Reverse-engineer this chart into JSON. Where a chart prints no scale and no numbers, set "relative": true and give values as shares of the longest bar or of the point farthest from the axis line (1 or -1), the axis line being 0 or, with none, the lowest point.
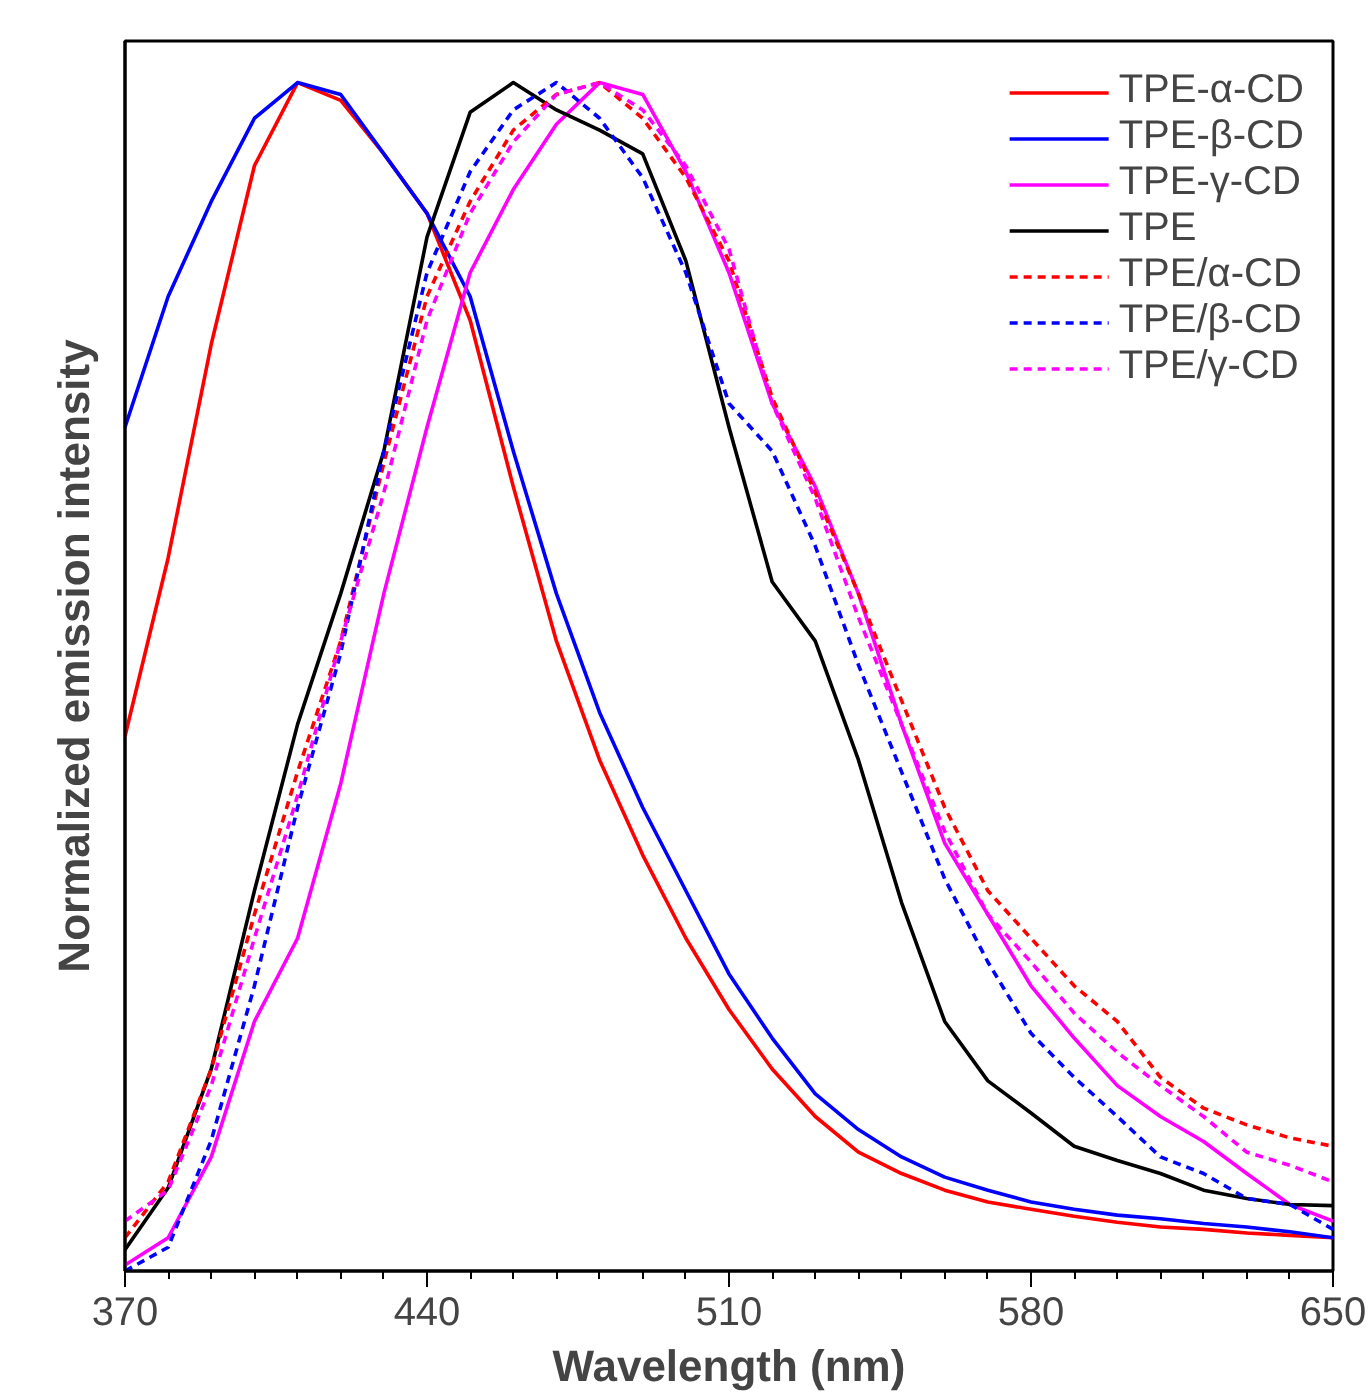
{
  "chart_data": {
    "type": "line",
    "relative": true,
    "xlabel": "Wavelength (nm)",
    "ylabel": "Normalized emission intensity",
    "x": [
      370,
      380,
      390,
      400,
      410,
      420,
      430,
      440,
      450,
      460,
      470,
      480,
      490,
      500,
      510,
      520,
      530,
      540,
      550,
      560,
      570,
      580,
      590,
      600,
      610,
      620,
      630,
      640,
      650
    ],
    "xlim": [
      370,
      650
    ],
    "xticks": [
      370,
      440,
      510,
      580,
      650
    ],
    "tick_labels": "x",
    "legend": "top right",
    "grid": false,
    "series": [
      {
        "name": "TPE-α-CD",
        "color": "#ff0000",
        "line_style": "solid",
        "values": [
          0.45,
          0.6,
          0.78,
          0.93,
          1.0,
          0.985,
          0.94,
          0.89,
          0.8,
          0.66,
          0.53,
          0.43,
          0.35,
          0.28,
          0.22,
          0.17,
          0.13,
          0.1,
          0.082,
          0.068,
          0.058,
          0.052,
          0.046,
          0.041,
          0.037,
          0.035,
          0.032,
          0.03,
          0.028
        ]
      },
      {
        "name": "TPE-β-CD",
        "color": "#0000ff",
        "line_style": "solid",
        "values": [
          0.71,
          0.82,
          0.9,
          0.97,
          1.0,
          0.99,
          0.94,
          0.89,
          0.82,
          0.69,
          0.57,
          0.47,
          0.39,
          0.32,
          0.25,
          0.196,
          0.149,
          0.119,
          0.096,
          0.079,
          0.068,
          0.058,
          0.052,
          0.047,
          0.044,
          0.04,
          0.037,
          0.033,
          0.028
        ]
      },
      {
        "name": "TPE-γ-CD",
        "color": "#ff00ff",
        "line_style": "solid",
        "values": [
          0.005,
          0.028,
          0.096,
          0.21,
          0.28,
          0.41,
          0.57,
          0.71,
          0.84,
          0.91,
          0.965,
          1.0,
          0.99,
          0.925,
          0.84,
          0.73,
          0.66,
          0.57,
          0.46,
          0.36,
          0.3,
          0.24,
          0.196,
          0.156,
          0.13,
          0.109,
          0.082,
          0.056,
          0.042
        ]
      },
      {
        "name": "TPE",
        "color": "#000000",
        "line_style": "solid",
        "values": [
          0.018,
          0.07,
          0.17,
          0.32,
          0.46,
          0.57,
          0.69,
          0.87,
          0.975,
          1.0,
          0.977,
          0.96,
          0.94,
          0.85,
          0.71,
          0.58,
          0.53,
          0.43,
          0.31,
          0.21,
          0.16,
          0.133,
          0.105,
          0.093,
          0.082,
          0.068,
          0.061,
          0.056,
          0.055
        ]
      },
      {
        "name": "TPE/α-CD",
        "color": "#ff0000",
        "line_style": "dashed",
        "values": [
          0.028,
          0.075,
          0.17,
          0.3,
          0.42,
          0.53,
          0.68,
          0.82,
          0.9,
          0.96,
          0.99,
          1.0,
          0.97,
          0.92,
          0.85,
          0.735,
          0.655,
          0.57,
          0.48,
          0.39,
          0.32,
          0.28,
          0.24,
          0.21,
          0.163,
          0.137,
          0.123,
          0.112,
          0.105
        ]
      },
      {
        "name": "TPE/β-CD",
        "color": "#0000ff",
        "line_style": "dashed",
        "values": [
          0,
          0.02,
          0.11,
          0.24,
          0.39,
          0.52,
          0.69,
          0.84,
          0.925,
          0.977,
          1.0,
          0.97,
          0.92,
          0.84,
          0.73,
          0.69,
          0.61,
          0.51,
          0.42,
          0.33,
          0.26,
          0.2,
          0.163,
          0.13,
          0.096,
          0.082,
          0.061,
          0.056,
          0.035
        ]
      },
      {
        "name": "TPE/γ-CD",
        "color": "#ff00ff",
        "line_style": "dashed",
        "values": [
          0.042,
          0.068,
          0.156,
          0.28,
          0.4,
          0.53,
          0.655,
          0.8,
          0.89,
          0.95,
          0.99,
          1.0,
          0.977,
          0.93,
          0.86,
          0.73,
          0.65,
          0.55,
          0.46,
          0.37,
          0.3,
          0.26,
          0.217,
          0.184,
          0.156,
          0.13,
          0.1,
          0.089,
          0.075
        ]
      }
    ]
  }
}
